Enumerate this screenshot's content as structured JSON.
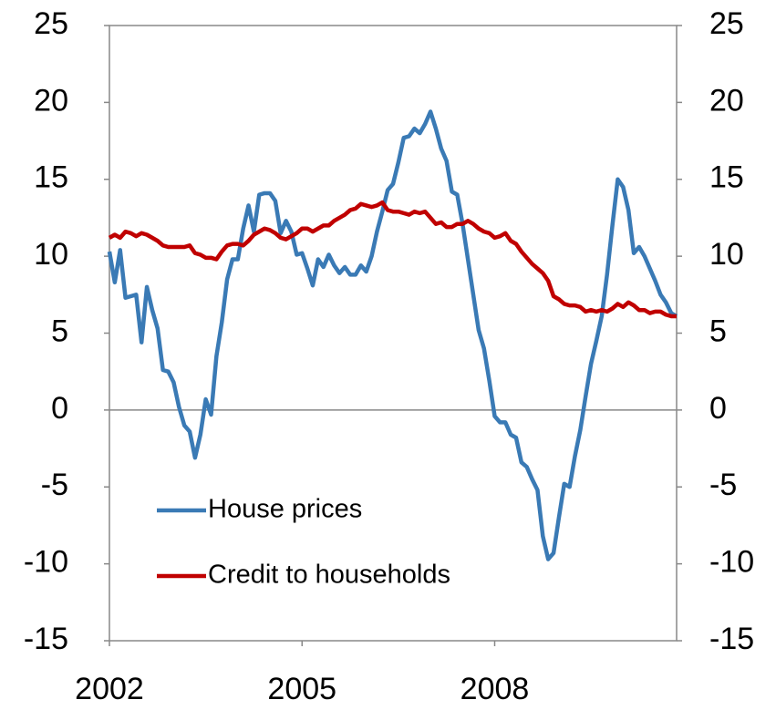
{
  "chart_data": {
    "type": "line",
    "categories": [
      "2002",
      null,
      null,
      null,
      null,
      null,
      null,
      null,
      null,
      null,
      null,
      null,
      null,
      null,
      null,
      null,
      null,
      null,
      null,
      null,
      null,
      null,
      null,
      null,
      null,
      null,
      null,
      null,
      null,
      null,
      null,
      null,
      null,
      null,
      null,
      null,
      "2005",
      null,
      null,
      null,
      null,
      null,
      null,
      null,
      null,
      null,
      null,
      null,
      null,
      null,
      null,
      null,
      null,
      null,
      null,
      null,
      null,
      null,
      null,
      null,
      null,
      null,
      null,
      null,
      null,
      null,
      null,
      null,
      null,
      null,
      null,
      null,
      "2008",
      null,
      null,
      null,
      null,
      null,
      null,
      null,
      null,
      null,
      null,
      null,
      null,
      null,
      null,
      null,
      null,
      null,
      null,
      null,
      null,
      null,
      null,
      null,
      null,
      null,
      null,
      null,
      null,
      null,
      null,
      null,
      null,
      null,
      null
    ],
    "series": [
      {
        "name": "House prices",
        "color": "#3a7ab5",
        "values": [
          10.3,
          8.3,
          10.4,
          7.3,
          7.4,
          7.5,
          4.4,
          8.0,
          6.5,
          5.3,
          2.6,
          2.5,
          1.8,
          0.2,
          -1.0,
          -1.4,
          -3.1,
          -1.6,
          0.7,
          -0.3,
          3.5,
          5.7,
          8.5,
          9.8,
          9.8,
          11.8,
          13.3,
          11.6,
          14.0,
          14.1,
          14.1,
          13.6,
          11.5,
          12.3,
          11.6,
          10.1,
          10.2,
          9.2,
          8.1,
          9.8,
          9.3,
          10.1,
          9.4,
          8.9,
          9.3,
          8.8,
          8.8,
          9.4,
          9.0,
          10.0,
          11.6,
          12.9,
          14.3,
          14.7,
          16.1,
          17.7,
          17.8,
          18.3,
          18.0,
          18.6,
          19.4,
          18.3,
          17.0,
          16.2,
          14.2,
          14.0,
          12.1,
          9.8,
          7.5,
          5.2,
          4.0,
          1.9,
          -0.4,
          -0.8,
          -0.8,
          -1.6,
          -1.8,
          -3.4,
          -3.7,
          -4.5,
          -5.2,
          -8.2,
          -9.7,
          -9.3,
          -7.0,
          -4.8,
          -5.0,
          -3.0,
          -1.3,
          0.9,
          3.0,
          4.5,
          6.1,
          8.8,
          12.0,
          15.0,
          14.5,
          13.0,
          10.2,
          10.6,
          10.0,
          9.2,
          8.4,
          7.5,
          7.0,
          6.3,
          6.1
        ]
      },
      {
        "name": "Credit to households",
        "color": "#c00000",
        "values": [
          11.2,
          11.4,
          11.2,
          11.6,
          11.5,
          11.3,
          11.5,
          11.4,
          11.2,
          11.0,
          10.7,
          10.6,
          10.6,
          10.6,
          10.6,
          10.7,
          10.2,
          10.1,
          9.9,
          9.9,
          9.8,
          10.3,
          10.7,
          10.8,
          10.8,
          10.7,
          11.0,
          11.4,
          11.6,
          11.8,
          11.7,
          11.5,
          11.2,
          11.1,
          11.3,
          11.5,
          11.8,
          11.8,
          11.6,
          11.8,
          12.0,
          12.0,
          12.3,
          12.5,
          12.7,
          13.0,
          13.1,
          13.4,
          13.3,
          13.2,
          13.3,
          13.5,
          13.0,
          12.9,
          12.9,
          12.8,
          12.7,
          12.9,
          12.8,
          12.9,
          12.5,
          12.1,
          12.2,
          11.9,
          11.9,
          12.1,
          12.1,
          12.3,
          12.1,
          11.8,
          11.6,
          11.5,
          11.2,
          11.3,
          11.5,
          11.0,
          10.8,
          10.3,
          9.9,
          9.5,
          9.2,
          8.9,
          8.4,
          7.4,
          7.2,
          6.9,
          6.8,
          6.8,
          6.7,
          6.4,
          6.5,
          6.4,
          6.5,
          6.4,
          6.6,
          6.9,
          6.7,
          7.0,
          6.8,
          6.5,
          6.5,
          6.3,
          6.4,
          6.4,
          6.2,
          6.1,
          6.1
        ]
      }
    ],
    "ylim": [
      -15,
      25
    ],
    "yticks": [
      -15,
      -10,
      -5,
      0,
      5,
      10,
      15,
      20,
      25
    ],
    "y2lim": [
      -15,
      25
    ],
    "y2ticks": [
      -15,
      -10,
      -5,
      0,
      5,
      10,
      15,
      20,
      25
    ],
    "legend": "lower left"
  }
}
